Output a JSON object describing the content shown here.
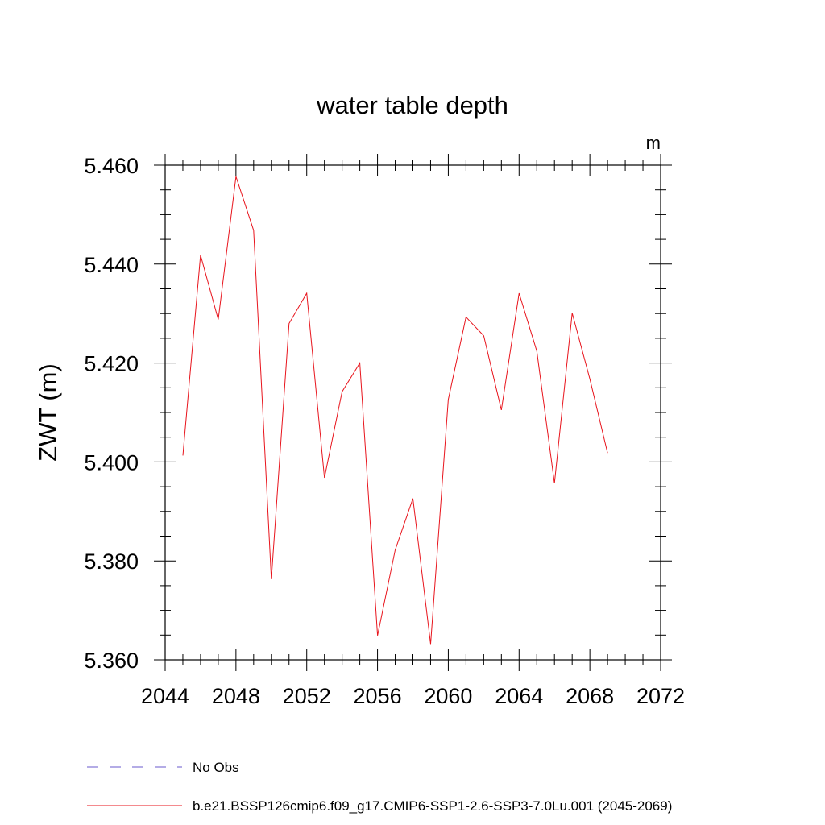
{
  "chart_data": {
    "type": "line",
    "title": "water table depth",
    "units": "m",
    "ylabel": "ZWT  (m)",
    "xlabel": "",
    "xlim": [
      2044,
      2072
    ],
    "ylim": [
      5.36,
      5.46
    ],
    "xticks": [
      "2044",
      "2048",
      "2052",
      "2056",
      "2060",
      "2064",
      "2068",
      "2072"
    ],
    "yticks": [
      "5.360",
      "5.380",
      "5.400",
      "5.420",
      "5.440",
      "5.460"
    ],
    "grid": false,
    "legend_position": "bottom",
    "legend": [
      {
        "name": "No Obs",
        "color": "#6a5acd",
        "style": "dashed"
      },
      {
        "name": "b.e21.BSSP126cmip6.f09_g17.CMIP6-SSP1-2.6-SSP3-7.0Lu.001 (2045-2069)",
        "color": "#e8141c",
        "style": "solid"
      }
    ],
    "series": [
      {
        "name": "b.e21.BSSP126cmip6.f09_g17.CMIP6-SSP1-2.6-SSP3-7.0Lu.001 (2045-2069)",
        "color": "#e8141c",
        "x": [
          2045,
          2046,
          2047,
          2048,
          2049,
          2050,
          2051,
          2052,
          2053,
          2054,
          2055,
          2056,
          2057,
          2058,
          2059,
          2060,
          2061,
          2062,
          2063,
          2064,
          2065,
          2066,
          2067,
          2068,
          2069
        ],
        "y": [
          5.4013,
          5.4418,
          5.4288,
          5.4577,
          5.4468,
          5.3763,
          5.428,
          5.4341,
          5.3968,
          5.4142,
          5.42,
          5.3649,
          5.3822,
          5.3926,
          5.3632,
          5.4126,
          5.4293,
          5.4255,
          5.4105,
          5.4341,
          5.4224,
          5.3957,
          5.4301,
          5.4168,
          5.4018
        ]
      }
    ]
  }
}
